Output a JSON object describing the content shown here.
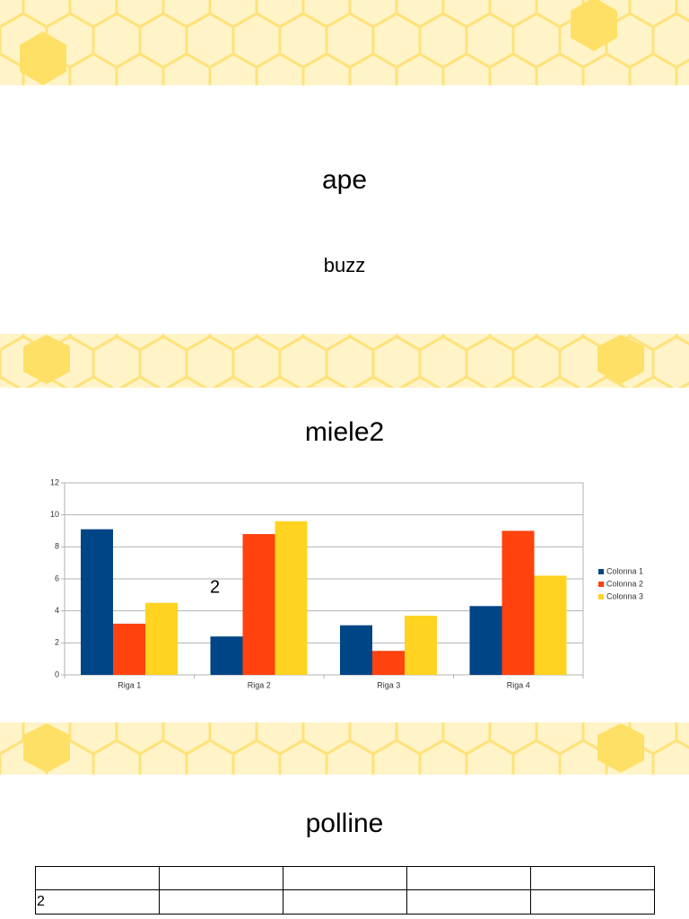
{
  "title": "ape",
  "subtitle": "buzz",
  "heading": "miele2",
  "chart_data": {
    "type": "bar",
    "annotation": "2",
    "categories": [
      "Riga 1",
      "Riga 2",
      "Riga 3",
      "Riga 4"
    ],
    "series": [
      {
        "name": "Colonna 1",
        "color": "#004586",
        "values": [
          9.1,
          2.4,
          3.1,
          4.3
        ]
      },
      {
        "name": "Colonna 2",
        "color": "#ff420e",
        "values": [
          3.2,
          8.8,
          1.5,
          9.0
        ]
      },
      {
        "name": "Colonna 3",
        "color": "#ffd320",
        "values": [
          4.5,
          9.6,
          3.7,
          6.2
        ]
      }
    ],
    "ylim": [
      0,
      12
    ],
    "yticks": [
      0,
      2,
      4,
      6,
      8,
      10,
      12
    ],
    "grid": true,
    "legend": "right"
  },
  "section": "polline",
  "table": {
    "rows": [
      [],
      [
        "2"
      ]
    ]
  }
}
